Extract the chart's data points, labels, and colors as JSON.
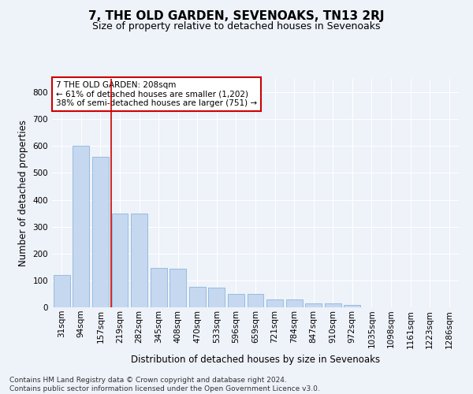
{
  "title": "7, THE OLD GARDEN, SEVENOAKS, TN13 2RJ",
  "subtitle": "Size of property relative to detached houses in Sevenoaks",
  "xlabel": "Distribution of detached houses by size in Sevenoaks",
  "ylabel": "Number of detached properties",
  "bar_labels": [
    "31sqm",
    "94sqm",
    "157sqm",
    "219sqm",
    "282sqm",
    "345sqm",
    "408sqm",
    "470sqm",
    "533sqm",
    "596sqm",
    "659sqm",
    "721sqm",
    "784sqm",
    "847sqm",
    "910sqm",
    "972sqm",
    "1035sqm",
    "1098sqm",
    "1161sqm",
    "1223sqm",
    "1286sqm"
  ],
  "bar_values": [
    120,
    600,
    560,
    350,
    348,
    147,
    145,
    75,
    72,
    50,
    50,
    30,
    30,
    15,
    15,
    8,
    0,
    0,
    0,
    0,
    0
  ],
  "bar_color": "#c5d8f0",
  "bar_edge_color": "#7badd4",
  "property_label": "7 THE OLD GARDEN: 208sqm",
  "annotation_line1": "← 61% of detached houses are smaller (1,202)",
  "annotation_line2": "38% of semi-detached houses are larger (751) →",
  "annotation_box_color": "#ffffff",
  "annotation_box_edge": "#cc0000",
  "line_color": "#cc0000",
  "ylim": [
    0,
    850
  ],
  "yticks": [
    0,
    100,
    200,
    300,
    400,
    500,
    600,
    700,
    800
  ],
  "footer_line1": "Contains HM Land Registry data © Crown copyright and database right 2024.",
  "footer_line2": "Contains public sector information licensed under the Open Government Licence v3.0.",
  "bg_color": "#eef2f9",
  "grid_color": "#ffffff",
  "title_fontsize": 11,
  "subtitle_fontsize": 9,
  "axis_label_fontsize": 8.5,
  "tick_fontsize": 7.5,
  "footer_fontsize": 6.5
}
